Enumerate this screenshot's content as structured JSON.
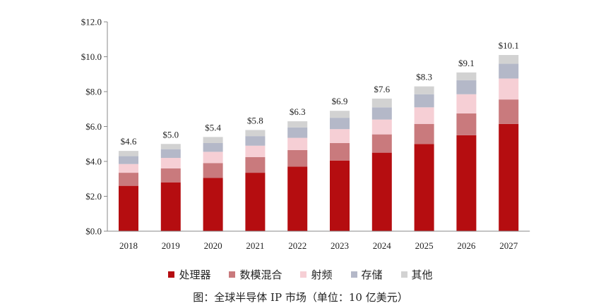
{
  "chart_data": {
    "type": "bar",
    "stacked": true,
    "categories": [
      "2018",
      "2019",
      "2020",
      "2021",
      "2022",
      "2023",
      "2024",
      "2025",
      "2026",
      "2027"
    ],
    "series": [
      {
        "name": "处理器",
        "color": "#b50d10",
        "values": [
          2.6,
          2.8,
          3.05,
          3.35,
          3.7,
          4.05,
          4.5,
          5.0,
          5.5,
          6.15
        ]
      },
      {
        "name": "数模混合",
        "color": "#c97a7d",
        "values": [
          0.75,
          0.8,
          0.85,
          0.9,
          0.95,
          1.0,
          1.05,
          1.15,
          1.25,
          1.4
        ]
      },
      {
        "name": "射频",
        "color": "#f6cfd5",
        "values": [
          0.5,
          0.6,
          0.65,
          0.65,
          0.7,
          0.8,
          0.85,
          0.95,
          1.1,
          1.2
        ]
      },
      {
        "name": "存储",
        "color": "#b4b8c8",
        "values": [
          0.45,
          0.5,
          0.5,
          0.55,
          0.6,
          0.65,
          0.7,
          0.75,
          0.8,
          0.85
        ]
      },
      {
        "name": "其他",
        "color": "#d2d2d2",
        "values": [
          0.3,
          0.3,
          0.35,
          0.35,
          0.35,
          0.4,
          0.5,
          0.45,
          0.45,
          0.5
        ]
      }
    ],
    "totals": [
      "$4.6",
      "$5.0",
      "$5.4",
      "$5.8",
      "$6.3",
      "$6.9",
      "$7.6",
      "$8.3",
      "$9.1",
      "$10.1"
    ],
    "y_ticks": [
      "$0.0",
      "$2.0",
      "$4.0",
      "$6.0",
      "$8.0",
      "$10.0",
      "$12.0"
    ],
    "ylim": [
      0,
      12
    ],
    "legend_position": "bottom",
    "grid": false
  },
  "caption": "图：全球半导体 IP 市场（单位：10 亿美元）"
}
